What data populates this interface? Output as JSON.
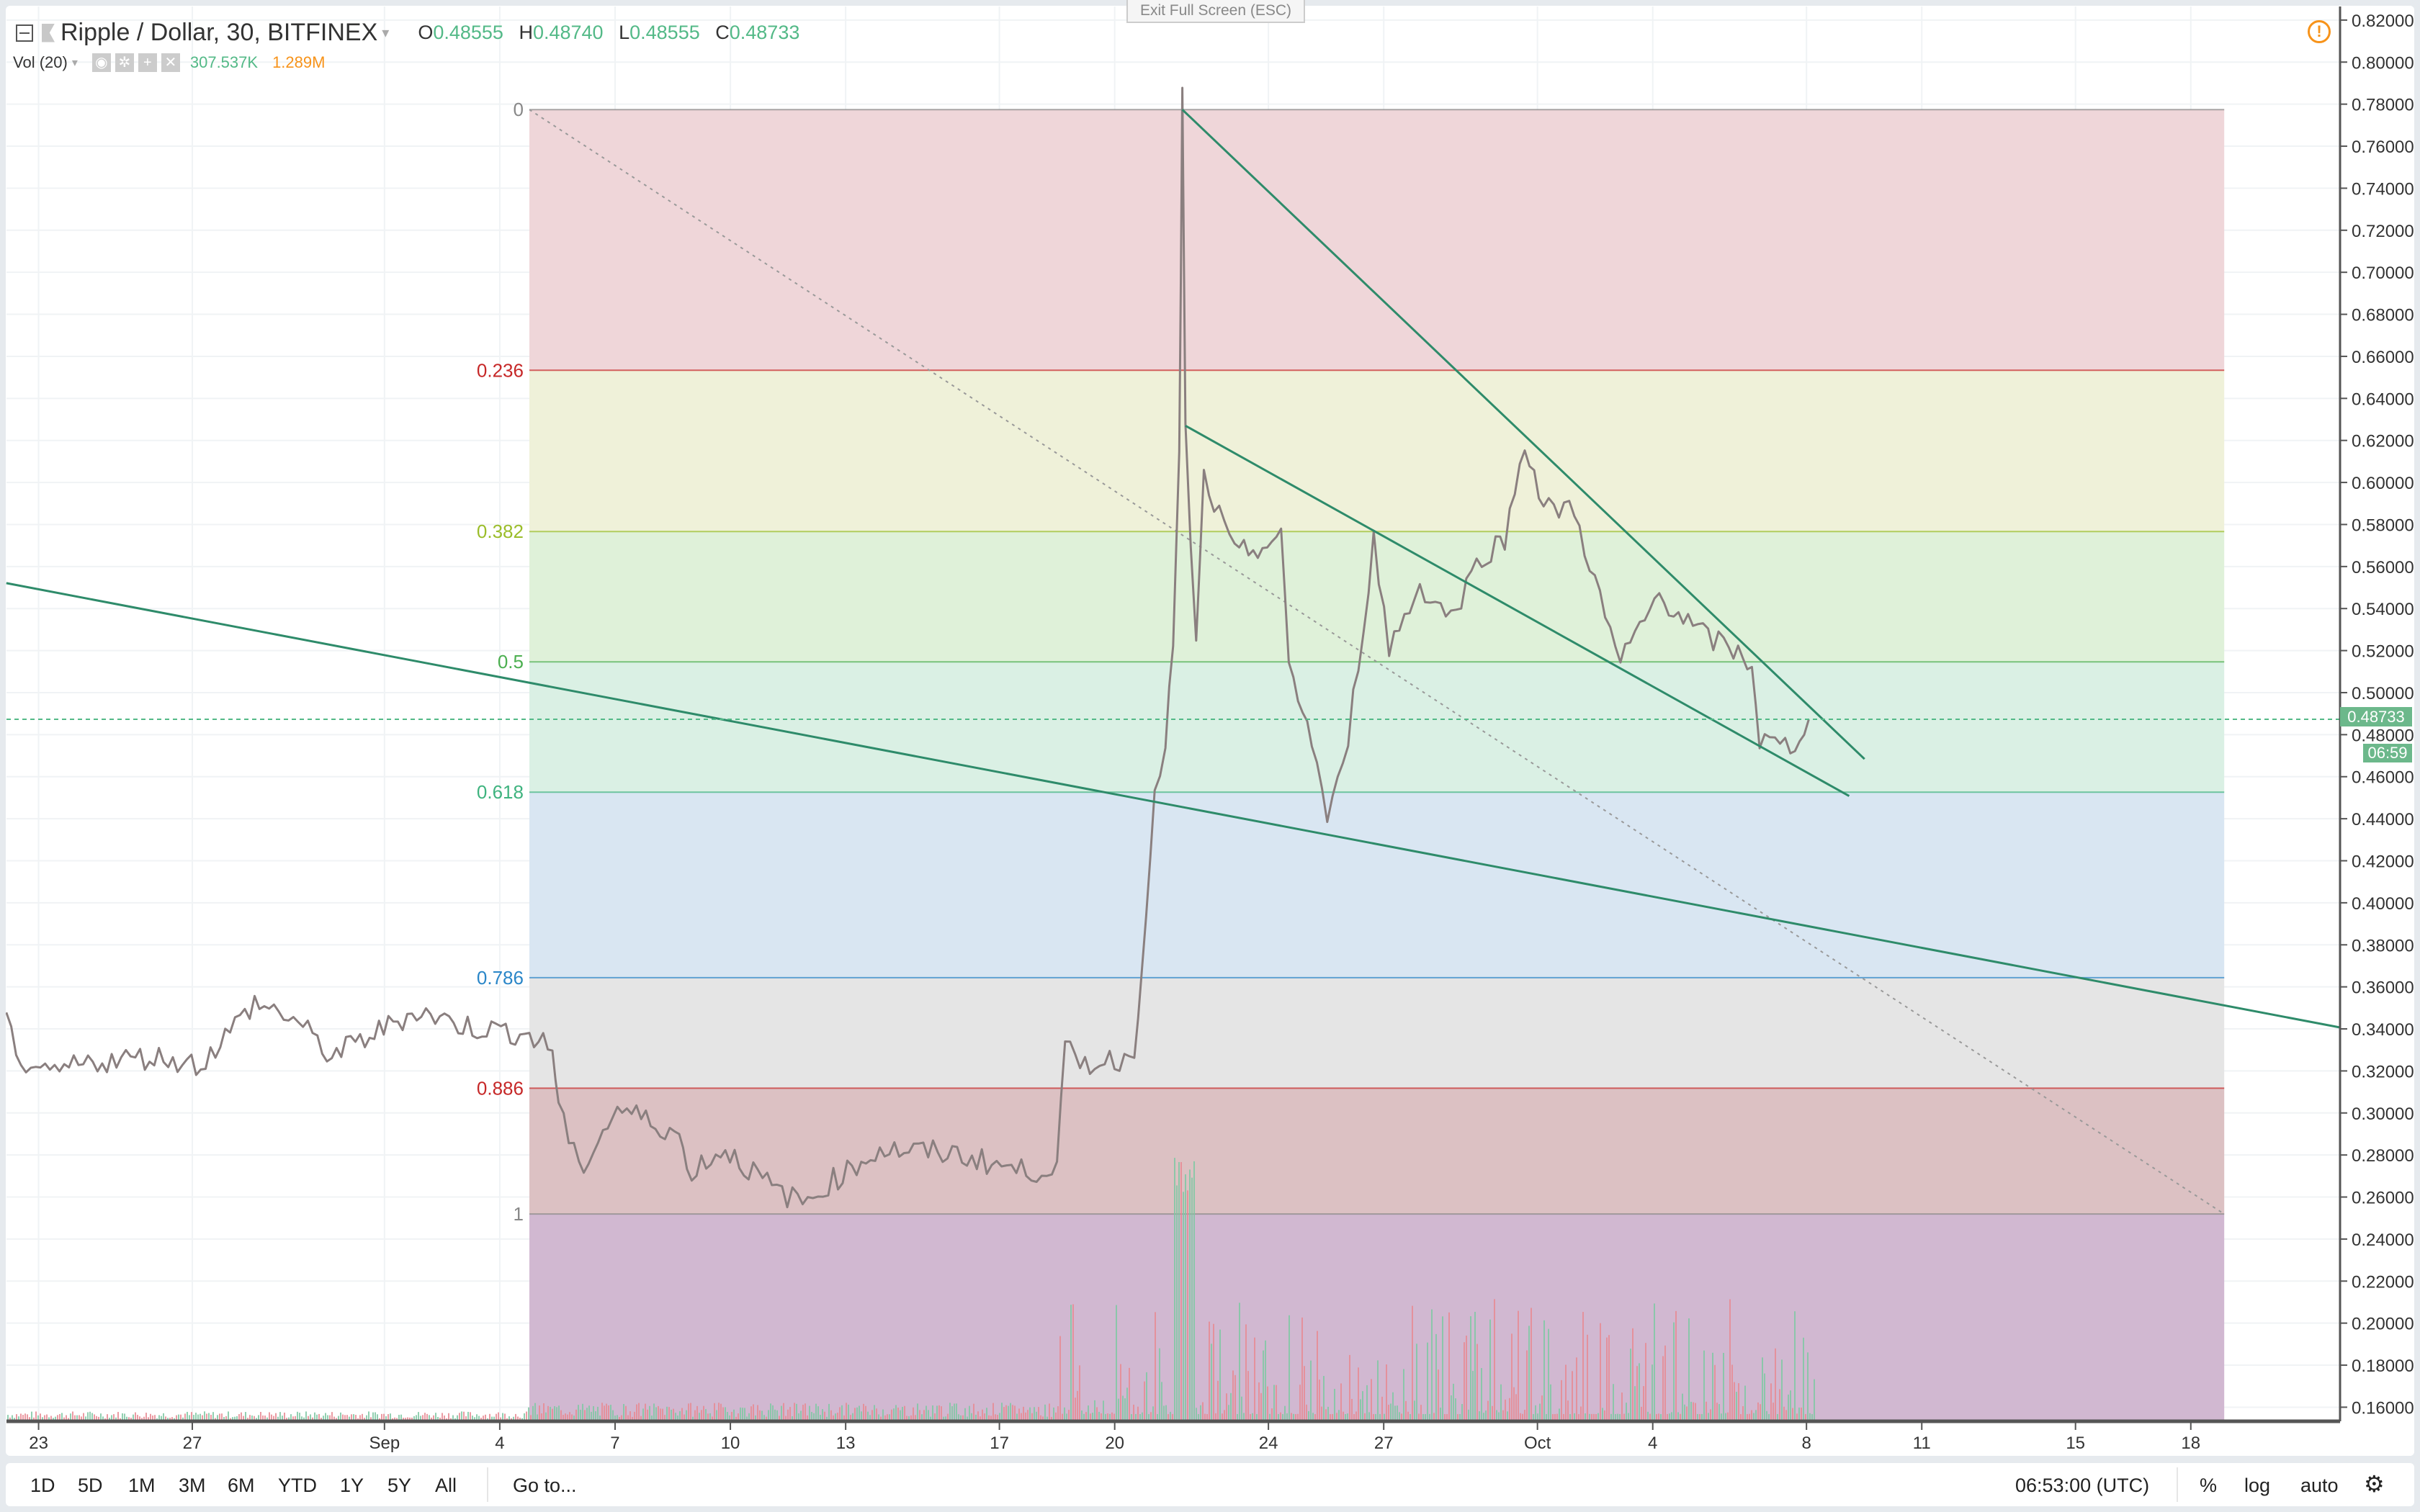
{
  "header": {
    "symbol": "Ripple / Dollar, 30, BITFINEX",
    "o_label": "O",
    "o": "0.48555",
    "h_label": "H",
    "h": "0.48740",
    "l_label": "L",
    "l": "0.48555",
    "c_label": "C",
    "c": "0.48733"
  },
  "volume": {
    "label": "Vol (20)",
    "value1": "307.537K",
    "value2": "1.289M"
  },
  "exit_fullscreen": "Exit Full Screen (ESC)",
  "price_tag": "0.48733",
  "countdown": "06:59",
  "toolbar": {
    "ranges": [
      "1D",
      "5D",
      "1M",
      "3M",
      "6M",
      "YTD",
      "1Y",
      "5Y",
      "All"
    ],
    "goto": "Go to...",
    "time": "06:53:00 (UTC)",
    "percent": "%",
    "log": "log",
    "auto": "auto"
  },
  "colors": {
    "up": "#53b987",
    "down": "#eb4d5c",
    "line": "#2e8b6a"
  },
  "chart_data": {
    "type": "line",
    "y_ticks": [
      "0.82000",
      "0.80000",
      "0.78000",
      "0.76000",
      "0.74000",
      "0.72000",
      "0.70000",
      "0.68000",
      "0.66000",
      "0.64000",
      "0.62000",
      "0.60000",
      "0.58000",
      "0.56000",
      "0.54000",
      "0.52000",
      "0.50000",
      "0.48000",
      "0.46000",
      "0.44000",
      "0.42000",
      "0.40000",
      "0.38000",
      "0.36000",
      "0.34000",
      "0.32000",
      "0.30000",
      "0.28000",
      "0.26000",
      "0.24000",
      "0.22000",
      "0.20000",
      "0.18000",
      "0.16000"
    ],
    "ylim": [
      0.16,
      0.82
    ],
    "x_ticks": [
      {
        "day": 0,
        "label": "23"
      },
      {
        "day": 4,
        "label": "27"
      },
      {
        "day": 9,
        "label": "Sep"
      },
      {
        "day": 12,
        "label": "4"
      },
      {
        "day": 15,
        "label": "7"
      },
      {
        "day": 18,
        "label": "10"
      },
      {
        "day": 21,
        "label": "13"
      },
      {
        "day": 25,
        "label": "17"
      },
      {
        "day": 28,
        "label": "20"
      },
      {
        "day": 32,
        "label": "24"
      },
      {
        "day": 35,
        "label": "27"
      },
      {
        "day": 39,
        "label": "Oct"
      },
      {
        "day": 42,
        "label": "4"
      },
      {
        "day": 46,
        "label": "8"
      },
      {
        "day": 49,
        "label": "11"
      },
      {
        "day": 53,
        "label": "15"
      },
      {
        "day": 56,
        "label": "18"
      }
    ],
    "price": [
      [
        -0.84,
        0.3436
      ],
      [
        -0.2,
        0.3157
      ],
      [
        1.41,
        0.3245
      ],
      [
        3.01,
        0.3268
      ],
      [
        4.22,
        0.3231
      ],
      [
        5.62,
        0.3524
      ],
      [
        6.63,
        0.3451
      ],
      [
        7.63,
        0.3268
      ],
      [
        9.84,
        0.3488
      ],
      [
        11.04,
        0.3414
      ],
      [
        12.65,
        0.3378
      ],
      [
        13.37,
        0.3304
      ],
      [
        13.53,
        0.3047
      ],
      [
        14.06,
        0.2717
      ],
      [
        15.06,
        0.3025
      ],
      [
        16.67,
        0.2901
      ],
      [
        16.87,
        0.2717
      ],
      [
        17.87,
        0.2827
      ],
      [
        19.08,
        0.2644
      ],
      [
        19.88,
        0.257
      ],
      [
        20.68,
        0.268
      ],
      [
        21.89,
        0.2827
      ],
      [
        23.9,
        0.2805
      ],
      [
        25.7,
        0.2717
      ],
      [
        26.5,
        0.2754
      ],
      [
        26.71,
        0.3304
      ],
      [
        27.1,
        0.3231
      ],
      [
        28.51,
        0.3268
      ],
      [
        28.71,
        0.3745
      ],
      [
        29.04,
        0.4479
      ],
      [
        29.32,
        0.4772
      ],
      [
        29.52,
        0.5213
      ],
      [
        29.68,
        0.6093
      ],
      [
        29.76,
        0.7855
      ],
      [
        29.84,
        0.624
      ],
      [
        30.12,
        0.5213
      ],
      [
        30.32,
        0.602
      ],
      [
        31.12,
        0.5653
      ],
      [
        32.33,
        0.5726
      ],
      [
        32.53,
        0.5139
      ],
      [
        33.13,
        0.4772
      ],
      [
        33.53,
        0.4405
      ],
      [
        33.94,
        0.4625
      ],
      [
        34.34,
        0.5139
      ],
      [
        34.74,
        0.5726
      ],
      [
        35.14,
        0.5213
      ],
      [
        35.94,
        0.5506
      ],
      [
        36.75,
        0.5359
      ],
      [
        37.55,
        0.5653
      ],
      [
        38.15,
        0.5726
      ],
      [
        38.67,
        0.6204
      ],
      [
        39.16,
        0.5873
      ],
      [
        39.96,
        0.5873
      ],
      [
        40.76,
        0.5359
      ],
      [
        41.16,
        0.5139
      ],
      [
        42.17,
        0.547
      ],
      [
        43.17,
        0.5286
      ],
      [
        43.98,
        0.5213
      ],
      [
        44.58,
        0.5139
      ],
      [
        44.78,
        0.4772
      ],
      [
        45.58,
        0.4736
      ],
      [
        46.06,
        0.4873
      ]
    ],
    "current_price": 0.48733,
    "fib": {
      "start": [
        12.77,
        0.7774
      ],
      "end": [
        56.87,
        0.2519
      ],
      "levels": [
        {
          "level": 0,
          "label": "0",
          "color": "#888888",
          "fill": "#efd6d9"
        },
        {
          "level": 0.236,
          "label": "0.236",
          "color": "#c62828",
          "fill": "#eff1d9"
        },
        {
          "level": 0.382,
          "label": "0.382",
          "color": "#9bbd2a",
          "fill": "#dff1d9"
        },
        {
          "level": 0.5,
          "label": "0.5",
          "color": "#4caf50",
          "fill": "#daf0e4"
        },
        {
          "level": 0.618,
          "label": "0.618",
          "color": "#3fb37f",
          "fill": "#d9e6f2"
        },
        {
          "level": 0.786,
          "label": "0.786",
          "color": "#2a86c8",
          "fill": "#e5e5e5"
        },
        {
          "level": 0.886,
          "label": "0.886",
          "color": "#c62828",
          "fill": "#dcc1c3"
        },
        {
          "level": 1,
          "label": "1",
          "color": "#888888",
          "fill": "#d1b8d1"
        }
      ]
    },
    "trendlines": [
      {
        "from": [
          -0.84,
          0.5521
        ],
        "to": [
          59.88,
          0.3407
        ]
      },
      {
        "from": [
          29.76,
          0.7774
        ],
        "to": [
          47.51,
          0.4684
        ]
      },
      {
        "from": [
          29.84,
          0.627
        ],
        "to": [
          47.11,
          0.4508
        ]
      }
    ]
  }
}
